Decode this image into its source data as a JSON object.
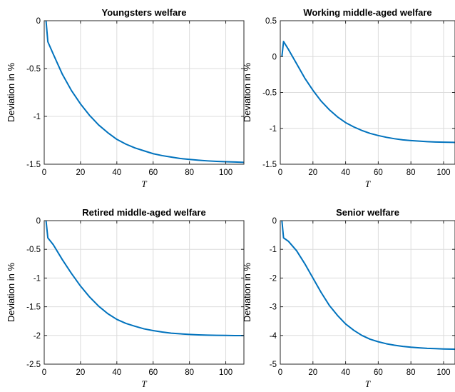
{
  "chart_data": [
    {
      "type": "line",
      "title": "Youngsters welfare",
      "xlabel": "T",
      "ylabel": "Deviation in %",
      "xlim": [
        0,
        110
      ],
      "ylim": [
        -1.5,
        0
      ],
      "xticks": [
        0,
        20,
        40,
        60,
        80,
        100
      ],
      "yticks": [
        0,
        -0.5,
        -1,
        -1.5
      ],
      "xtick_labels": [
        "0",
        "20",
        "40",
        "60",
        "80",
        "100"
      ],
      "ytick_labels": [
        "0",
        "-0.5",
        "-1",
        "-1.5"
      ],
      "grid": true,
      "series": [
        {
          "color": "#0072bd",
          "x": [
            1,
            2,
            5,
            10,
            15,
            20,
            25,
            30,
            35,
            40,
            45,
            50,
            55,
            60,
            65,
            70,
            75,
            80,
            85,
            90,
            95,
            100,
            105,
            110
          ],
          "y": [
            0,
            -0.22,
            -0.35,
            -0.56,
            -0.73,
            -0.87,
            -0.99,
            -1.09,
            -1.17,
            -1.24,
            -1.29,
            -1.33,
            -1.36,
            -1.39,
            -1.41,
            -1.425,
            -1.44,
            -1.45,
            -1.458,
            -1.465,
            -1.47,
            -1.474,
            -1.477,
            -1.48
          ]
        }
      ]
    },
    {
      "type": "line",
      "title": "Working middle-aged welfare",
      "xlabel": "T",
      "ylabel": "Deviation in %",
      "xlim": [
        0,
        107
      ],
      "ylim": [
        -1.5,
        0.5
      ],
      "xticks": [
        0,
        20,
        40,
        60,
        80,
        100
      ],
      "yticks": [
        0.5,
        0,
        -0.5,
        -1,
        -1.5
      ],
      "xtick_labels": [
        "0",
        "20",
        "40",
        "60",
        "80",
        "100"
      ],
      "ytick_labels": [
        "0.5",
        "0",
        "-0.5",
        "-1",
        "-1.5"
      ],
      "grid": true,
      "series": [
        {
          "color": "#0072bd",
          "x": [
            1,
            2,
            5,
            10,
            15,
            20,
            25,
            30,
            35,
            40,
            45,
            50,
            55,
            60,
            65,
            70,
            75,
            80,
            85,
            90,
            95,
            100,
            107
          ],
          "y": [
            0,
            0.21,
            0.1,
            -0.1,
            -0.3,
            -0.47,
            -0.62,
            -0.74,
            -0.84,
            -0.92,
            -0.98,
            -1.03,
            -1.07,
            -1.1,
            -1.125,
            -1.145,
            -1.16,
            -1.17,
            -1.178,
            -1.185,
            -1.19,
            -1.193,
            -1.196
          ]
        }
      ]
    },
    {
      "type": "line",
      "title": "Retired middle-aged welfare",
      "xlabel": "T",
      "ylabel": "Deviation in %",
      "xlim": [
        0,
        110
      ],
      "ylim": [
        -2.5,
        0
      ],
      "xticks": [
        0,
        20,
        40,
        60,
        80,
        100
      ],
      "yticks": [
        0,
        -0.5,
        -1,
        -1.5,
        -2,
        -2.5
      ],
      "xtick_labels": [
        "0",
        "20",
        "40",
        "60",
        "80",
        "100"
      ],
      "ytick_labels": [
        "0",
        "-0.5",
        "-1",
        "-1.5",
        "-2",
        "-2.5"
      ],
      "grid": true,
      "series": [
        {
          "color": "#0072bd",
          "x": [
            1,
            2,
            5,
            10,
            15,
            20,
            25,
            30,
            35,
            40,
            45,
            50,
            55,
            60,
            65,
            70,
            75,
            80,
            85,
            90,
            95,
            100,
            105,
            110
          ],
          "y": [
            0,
            -0.3,
            -0.42,
            -0.68,
            -0.92,
            -1.14,
            -1.33,
            -1.49,
            -1.62,
            -1.72,
            -1.79,
            -1.84,
            -1.885,
            -1.915,
            -1.94,
            -1.96,
            -1.972,
            -1.982,
            -1.99,
            -1.995,
            -1.998,
            -2.0,
            -2.002,
            -2.003
          ]
        }
      ]
    },
    {
      "type": "line",
      "title": "Senior welfare",
      "xlabel": "T",
      "ylabel": "Deviation in %",
      "xlim": [
        0,
        107
      ],
      "ylim": [
        -5,
        0
      ],
      "xticks": [
        0,
        20,
        40,
        60,
        80,
        100
      ],
      "yticks": [
        0,
        -1,
        -2,
        -3,
        -4,
        -5
      ],
      "xtick_labels": [
        "0",
        "20",
        "40",
        "60",
        "80",
        "100"
      ],
      "ytick_labels": [
        "0",
        "-1",
        "-2",
        "-3",
        "-4",
        "-5"
      ],
      "grid": true,
      "series": [
        {
          "color": "#0072bd",
          "x": [
            1,
            2,
            5,
            10,
            15,
            20,
            25,
            30,
            35,
            40,
            45,
            50,
            55,
            60,
            65,
            70,
            75,
            80,
            85,
            90,
            95,
            100,
            107
          ],
          "y": [
            0,
            -0.6,
            -0.72,
            -1.05,
            -1.5,
            -2.0,
            -2.5,
            -2.95,
            -3.3,
            -3.6,
            -3.82,
            -4.0,
            -4.13,
            -4.22,
            -4.29,
            -4.34,
            -4.38,
            -4.41,
            -4.43,
            -4.45,
            -4.46,
            -4.47,
            -4.48
          ]
        }
      ]
    }
  ]
}
